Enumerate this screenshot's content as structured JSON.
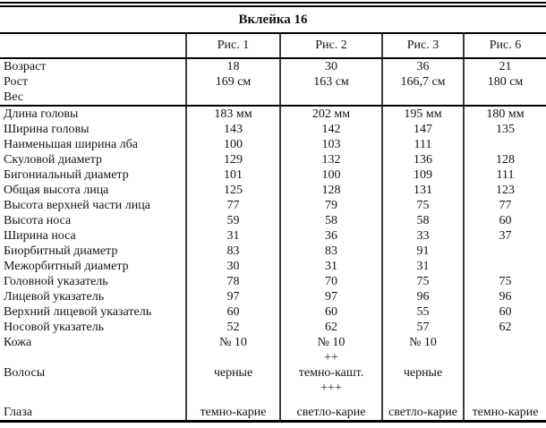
{
  "title": "Вклейка 16",
  "columns": [
    "Рис. 1",
    "Рис. 2",
    "Рис. 3",
    "Рис. 6"
  ],
  "sections": [
    {
      "rows": [
        {
          "label": "Возраст",
          "values": [
            "18",
            "30",
            "36",
            "21"
          ]
        },
        {
          "label": "Рост",
          "values": [
            "169 см",
            "163 см",
            "166,7 см",
            "180 см"
          ]
        },
        {
          "label": "Вес",
          "values": [
            "",
            "",
            "",
            ""
          ]
        }
      ]
    },
    {
      "rows": [
        {
          "label": "Длина головы",
          "values": [
            "183 мм",
            "202 мм",
            "195 мм",
            "180 мм"
          ]
        },
        {
          "label": "Ширина головы",
          "values": [
            "143",
            "142",
            "147",
            "135"
          ]
        },
        {
          "label": "Наименьшая ширина лба",
          "values": [
            "100",
            "103",
            "111",
            ""
          ]
        },
        {
          "label": "Скуловой диаметр",
          "values": [
            "129",
            "132",
            "136",
            "128"
          ]
        },
        {
          "label": "Бигониальный диаметр",
          "values": [
            "101",
            "100",
            "109",
            "111"
          ]
        },
        {
          "label": "Общая высота лица",
          "values": [
            "125",
            "128",
            "131",
            "123"
          ]
        },
        {
          "label": "Высота верхней части лица",
          "values": [
            "77",
            "79",
            "75",
            "77"
          ]
        },
        {
          "label": "Высота носа",
          "values": [
            "59",
            "58",
            "58",
            "60"
          ]
        },
        {
          "label": "Ширина носа",
          "values": [
            "31",
            "36",
            "33",
            "37"
          ]
        },
        {
          "label": "Биорбитный диаметр",
          "values": [
            "83",
            "83",
            "91",
            ""
          ]
        },
        {
          "label": "Межорбитный диаметр",
          "values": [
            "30",
            "31",
            "31",
            ""
          ]
        },
        {
          "label": "Головной указатель",
          "values": [
            "78",
            "70",
            "75",
            "75"
          ]
        },
        {
          "label": "Лицевой указатель",
          "values": [
            "97",
            "97",
            "96",
            "96"
          ]
        },
        {
          "label": "Верхний лицевой указатель",
          "values": [
            "60",
            "60",
            "55",
            "60"
          ]
        },
        {
          "label": "Носовой указатель",
          "values": [
            "52",
            "62",
            "57",
            "62"
          ]
        },
        {
          "label": "Кожа",
          "values": [
            "№ 10",
            "№ 10",
            "№ 10",
            ""
          ]
        },
        {
          "label": "",
          "values": [
            "",
            "++",
            "",
            ""
          ]
        },
        {
          "label": "Волосы",
          "values": [
            "черные",
            "темно-кашт.",
            "черные",
            ""
          ]
        },
        {
          "label": "",
          "values": [
            "",
            "+++",
            "",
            ""
          ]
        },
        {
          "label": "Глаза",
          "values": [
            "темно-карие",
            "светло-карие",
            "светло-карие",
            "темно-карие"
          ],
          "spaced": true
        }
      ]
    }
  ],
  "colors": {
    "background": "#ffffff",
    "text": "#141414",
    "rule": "#000000",
    "column_separator": "#3d3d3d"
  }
}
